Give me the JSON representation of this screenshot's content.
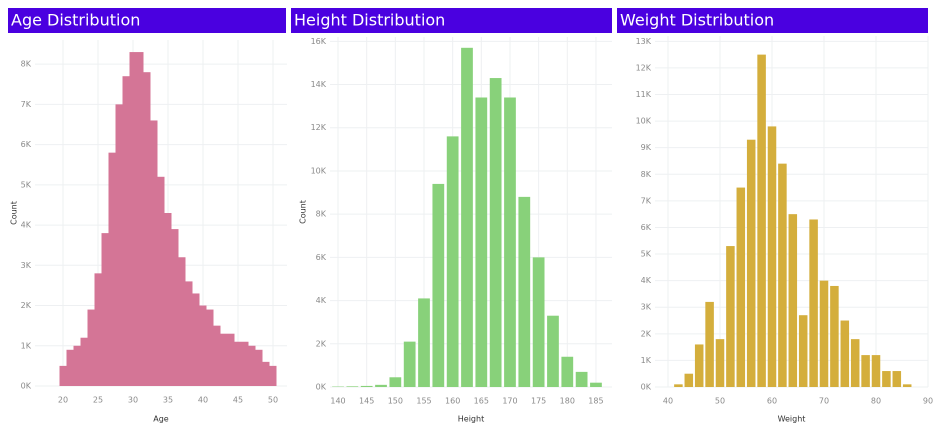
{
  "chart_data": [
    {
      "type": "histogram",
      "title": "Age Distribution",
      "xlabel": "Age",
      "ylabel": "Count",
      "color": "#d47596",
      "gap": false,
      "bins": [
        19.5,
        20.5,
        21.5,
        22.5,
        23.5,
        24.5,
        25.5,
        26.5,
        27.5,
        28.5,
        29.5,
        30.5,
        31.5,
        32.5,
        33.5,
        34.5,
        35.5,
        36.5,
        37.5,
        38.5,
        39.5,
        40.5,
        41.5,
        42.5,
        43.5,
        44.5,
        45.5,
        46.5,
        47.5,
        48.5,
        49.5,
        50.5
      ],
      "values": [
        500,
        900,
        1000,
        1200,
        1900,
        2800,
        3800,
        5800,
        7000,
        7700,
        8300,
        8300,
        7800,
        6600,
        5200,
        4300,
        3900,
        3200,
        2600,
        2300,
        2000,
        1900,
        1500,
        1300,
        1300,
        1100,
        1100,
        1000,
        900,
        600,
        500
      ],
      "xlim": [
        16,
        52
      ],
      "xticks": [
        20,
        25,
        30,
        35,
        40,
        45,
        50
      ],
      "ylim": [
        0,
        8600
      ],
      "yticks": [
        {
          "value": 0,
          "label": "0K"
        },
        {
          "value": 1000,
          "label": "1K"
        },
        {
          "value": 2000,
          "label": "2K"
        },
        {
          "value": 3000,
          "label": "3K"
        },
        {
          "value": 4000,
          "label": "4K"
        },
        {
          "value": 5000,
          "label": "5K"
        },
        {
          "value": 6000,
          "label": "6K"
        },
        {
          "value": 7000,
          "label": "7K"
        },
        {
          "value": 8000,
          "label": "8K"
        }
      ],
      "grid": true
    },
    {
      "type": "histogram",
      "title": "Height Distribution",
      "xlabel": "Height",
      "ylabel": "Count",
      "color": "#88d17a",
      "gap": true,
      "bins": [
        138.75,
        141.25,
        143.75,
        146.25,
        148.75,
        151.25,
        153.75,
        156.25,
        158.75,
        161.25,
        163.75,
        166.25,
        168.75,
        171.25,
        173.75,
        176.25,
        178.75,
        181.25,
        183.75,
        186.25
      ],
      "values": [
        20,
        30,
        50,
        100,
        450,
        2100,
        4100,
        9400,
        11600,
        15700,
        13400,
        14300,
        13400,
        8800,
        6000,
        3300,
        1400,
        700,
        200
      ],
      "xlim": [
        138.6,
        187.8
      ],
      "xticks": [
        140,
        145,
        150,
        155,
        160,
        165,
        170,
        175,
        180,
        185
      ],
      "ylim": [
        0,
        16200
      ],
      "yticks": [
        {
          "value": 0,
          "label": "0K"
        },
        {
          "value": 2000,
          "label": "2K"
        },
        {
          "value": 4000,
          "label": "4K"
        },
        {
          "value": 6000,
          "label": "6K"
        },
        {
          "value": 8000,
          "label": "8K"
        },
        {
          "value": 10000,
          "label": "10K"
        },
        {
          "value": 12000,
          "label": "12K"
        },
        {
          "value": 14000,
          "label": "14K"
        },
        {
          "value": 16000,
          "label": "16K"
        }
      ],
      "grid": true
    },
    {
      "type": "histogram",
      "title": "Weight Distribution",
      "xlabel": "Weight",
      "color": "#d4ae3c",
      "gap": true,
      "bins": [
        41,
        43,
        45,
        47,
        49,
        51,
        53,
        55,
        57,
        59,
        61,
        63,
        65,
        67,
        69,
        71,
        73,
        75,
        77,
        79,
        81,
        83,
        85,
        87
      ],
      "values": [
        100,
        500,
        1600,
        3200,
        1800,
        5300,
        7500,
        9300,
        12500,
        9800,
        8400,
        6500,
        2700,
        6300,
        4000,
        3800,
        2500,
        1800,
        1200,
        1200,
        600,
        600,
        100
      ],
      "xlim": [
        37.5,
        90
      ],
      "xticks": [
        40,
        50,
        60,
        70,
        80,
        90
      ],
      "ylim": [
        0,
        13200
      ],
      "yticks": [
        {
          "value": 0,
          "label": "0K"
        },
        {
          "value": 1000,
          "label": "1K"
        },
        {
          "value": 2000,
          "label": "2K"
        },
        {
          "value": 3000,
          "label": "3K"
        },
        {
          "value": 4000,
          "label": "4K"
        },
        {
          "value": 5000,
          "label": "5K"
        },
        {
          "value": 6000,
          "label": "6K"
        },
        {
          "value": 7000,
          "label": "7K"
        },
        {
          "value": 8000,
          "label": "8K"
        },
        {
          "value": 9000,
          "label": "9K"
        },
        {
          "value": 10000,
          "label": "10K"
        },
        {
          "value": 11000,
          "label": "11K"
        },
        {
          "value": 12000,
          "label": "12K"
        },
        {
          "value": 13000,
          "label": "13K"
        }
      ],
      "grid": true
    }
  ]
}
